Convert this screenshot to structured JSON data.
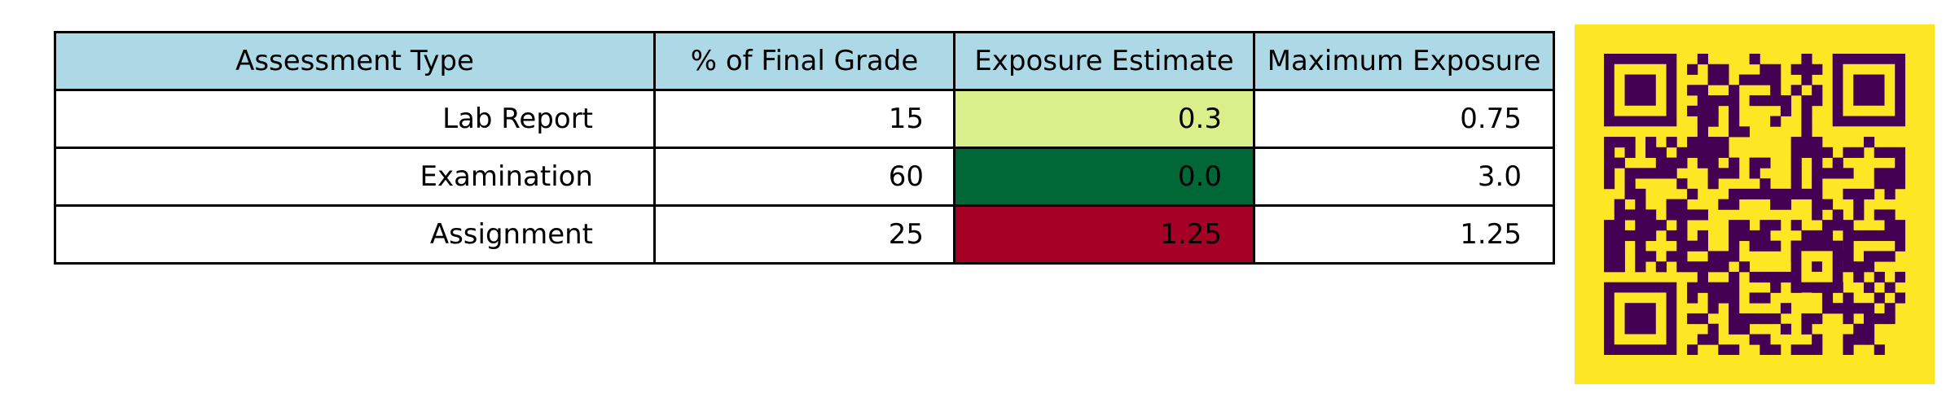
{
  "chart_data": {
    "type": "table",
    "columns": [
      "Assessment Type",
      "% of Final Grade",
      "Exposure Estimate",
      "Maximum Exposure"
    ],
    "rows": [
      {
        "assessment": "Lab Report",
        "percent": "15",
        "estimate": "0.3",
        "maximum": "0.75",
        "estimate_color": "#d9f08a"
      },
      {
        "assessment": "Examination",
        "percent": "60",
        "estimate": "0.0",
        "maximum": "3.0",
        "estimate_color": "#006837"
      },
      {
        "assessment": "Assignment",
        "percent": "25",
        "estimate": "1.25",
        "maximum": "1.25",
        "estimate_color": "#a50026"
      }
    ],
    "header_color": "#add8e6"
  },
  "qr_code": {
    "background": "#fde725",
    "foreground": "#440154",
    "icon": "qr-code-icon"
  }
}
